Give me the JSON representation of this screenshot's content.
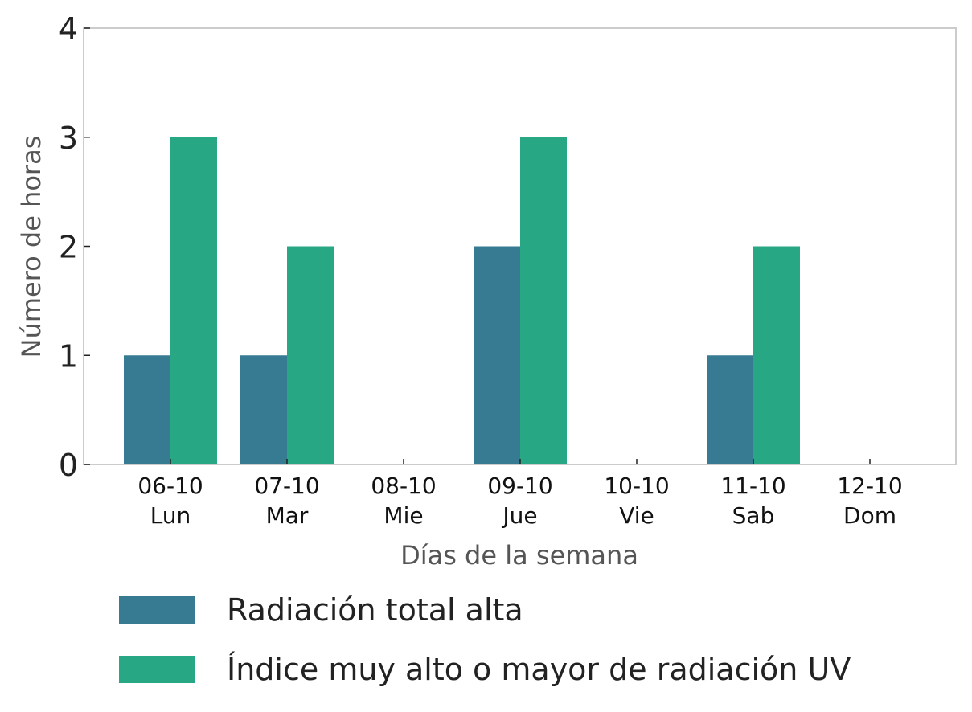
{
  "chart_data": {
    "type": "bar",
    "categories": [
      "06-10\nLun",
      "07-10\nMar",
      "08-10\nMie",
      "09-10\nJue",
      "10-10\nVie",
      "11-10\nSab",
      "12-10\nDom"
    ],
    "series": [
      {
        "name": "Radiación total alta",
        "values": [
          1,
          1,
          0,
          2,
          0,
          1,
          0
        ],
        "color": "#377b93"
      },
      {
        "name": "Índice muy alto o mayor de radiación UV",
        "values": [
          3,
          2,
          0,
          3,
          0,
          2,
          0
        ],
        "color": "#28a785"
      }
    ],
    "xlabel": "Días de la semana",
    "ylabel": "Número de horas",
    "ylim": [
      0,
      4
    ],
    "yticks": [
      0,
      1,
      2,
      3,
      4
    ],
    "grid": false,
    "legend_position": "bottom"
  }
}
